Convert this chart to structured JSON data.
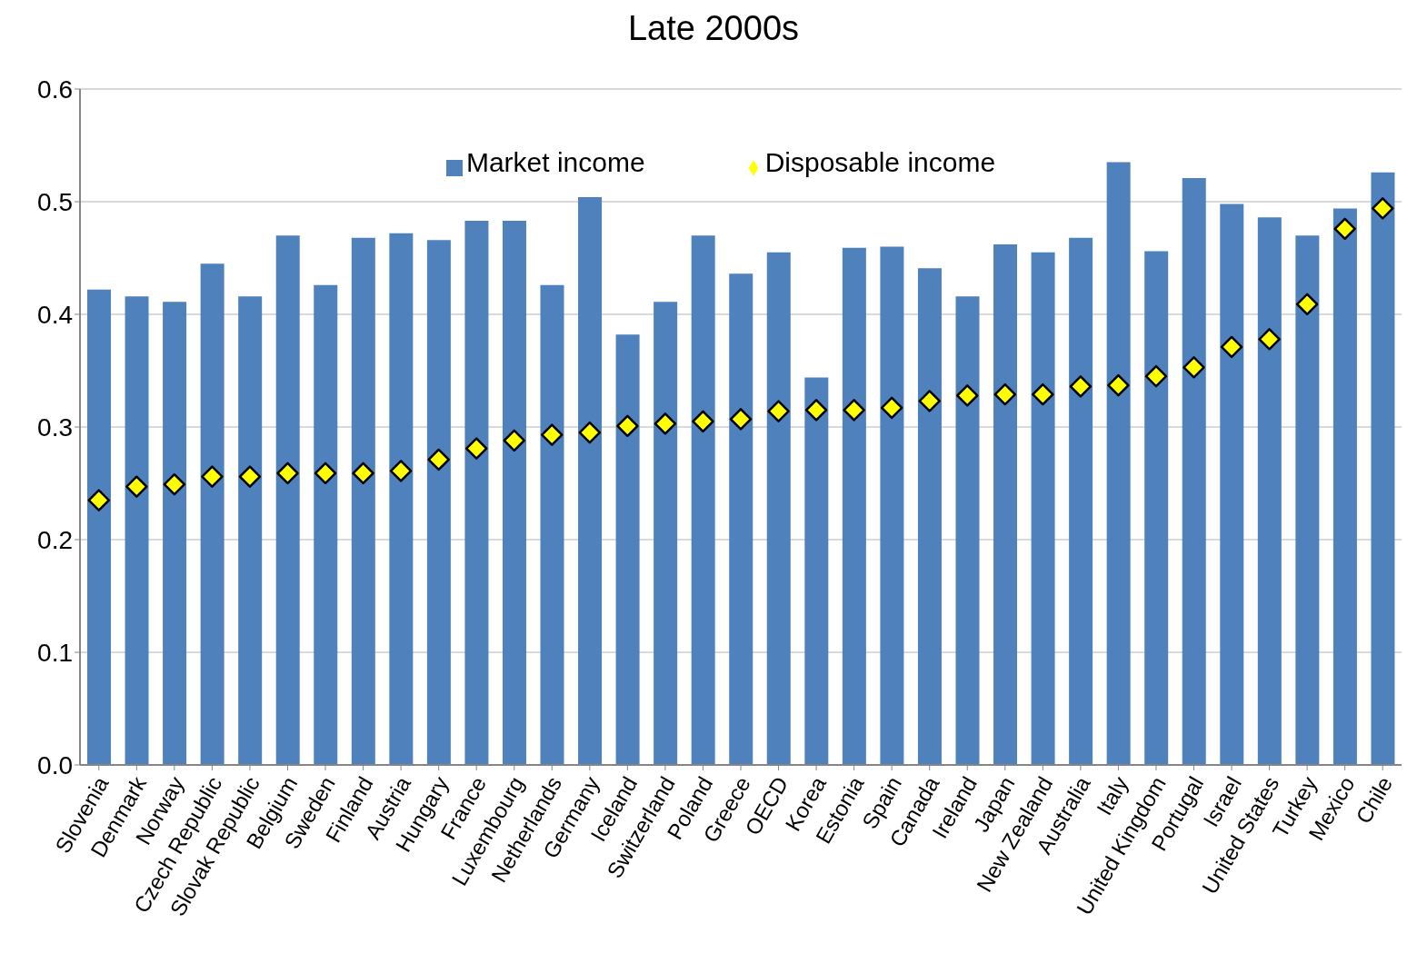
{
  "chart_data": {
    "type": "bar",
    "title": "Late 2000s",
    "categories": [
      "Slovenia",
      "Denmark",
      "Norway",
      "Czech Republic",
      "Slovak Republic",
      "Belgium",
      "Sweden",
      "Finland",
      "Austria",
      "Hungary",
      "France",
      "Luxembourg",
      "Netherlands",
      "Germany",
      "Iceland",
      "Switzerland",
      "Poland",
      "Greece",
      "OECD",
      "Korea",
      "Estonia",
      "Spain",
      "Canada",
      "Ireland",
      "Japan",
      "New Zealand",
      "Australia",
      "Italy",
      "United Kingdom",
      "Portugal",
      "Israel",
      "United States",
      "Turkey",
      "Mexico",
      "Chile"
    ],
    "series": [
      {
        "name": "Market income",
        "color": "#4f81bd",
        "values": [
          0.422,
          0.416,
          0.411,
          0.445,
          0.416,
          0.47,
          0.426,
          0.468,
          0.472,
          0.466,
          0.483,
          0.483,
          0.426,
          0.504,
          0.382,
          0.411,
          0.47,
          0.436,
          0.455,
          0.344,
          0.459,
          0.46,
          0.441,
          0.416,
          0.462,
          0.455,
          0.468,
          0.535,
          0.456,
          0.521,
          0.498,
          0.486,
          0.47,
          0.494,
          0.526
        ]
      },
      {
        "name": "Disposable income",
        "type": "scatter",
        "color": "#ffff00",
        "values": [
          0.235,
          0.247,
          0.249,
          0.256,
          0.256,
          0.259,
          0.259,
          0.259,
          0.261,
          0.271,
          0.281,
          0.288,
          0.293,
          0.295,
          0.301,
          0.303,
          0.305,
          0.307,
          0.314,
          0.315,
          0.315,
          0.317,
          0.323,
          0.328,
          0.329,
          0.329,
          0.336,
          0.337,
          0.345,
          0.353,
          0.371,
          0.378,
          0.409,
          0.476,
          0.494
        ]
      }
    ],
    "ylim": [
      0,
      0.6
    ],
    "yticks": [
      {
        "value": 0,
        "label": "0.0"
      },
      0.1,
      0.2,
      0.3,
      0.4,
      0.5,
      0.6
    ],
    "grid": "y",
    "legend": "top",
    "marker": "diamond"
  }
}
